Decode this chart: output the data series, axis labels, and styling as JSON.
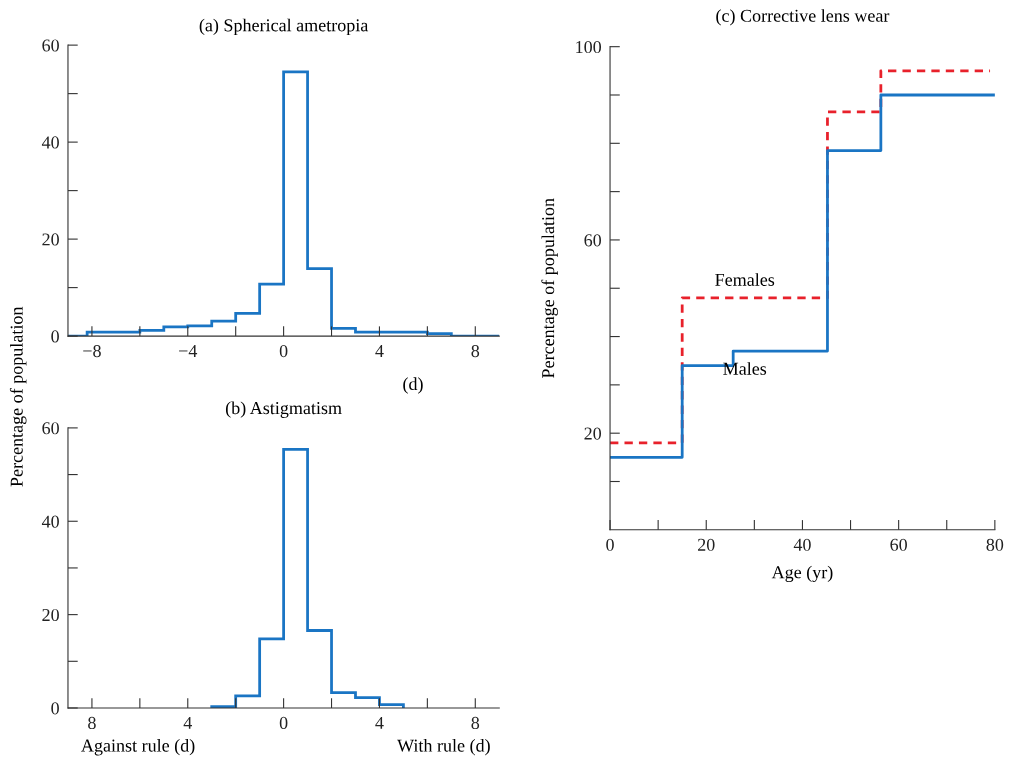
{
  "chart_data": [
    {
      "type": "histogram",
      "title": "(a) Spherical ametropia",
      "ylabel": "Percentage of population",
      "annotations": [
        "(d)"
      ],
      "bins": [
        -9,
        -8.2,
        -6,
        -5,
        -4,
        -3,
        -2,
        -1,
        0,
        1,
        2,
        3,
        6,
        7,
        9
      ],
      "values": [
        0,
        0.8,
        1.2,
        1.9,
        2.1,
        3.1,
        4.7,
        10.7,
        54.5,
        13.9,
        1.6,
        0.8,
        0.5,
        0
      ],
      "color": "#1a75c4",
      "xlim": [
        -9,
        9
      ],
      "ylim": [
        0,
        60
      ],
      "xticks": [
        {
          "value": -8,
          "label": "−8"
        },
        {
          "value": -6,
          "label": null
        },
        {
          "value": -4,
          "label": "−4"
        },
        {
          "value": -2,
          "label": null
        },
        0,
        {
          "value": 2,
          "label": null
        },
        4,
        {
          "value": 6,
          "label": null
        },
        8
      ],
      "yticks": [
        0,
        {
          "value": 10,
          "label": null
        },
        20,
        {
          "value": 30,
          "label": null
        },
        40,
        {
          "value": 50,
          "label": null
        },
        60
      ]
    },
    {
      "type": "histogram",
      "title": "(b) Astigmatism",
      "annotations": [
        "Against rule (d)",
        "With rule (d)"
      ],
      "bins": [
        -3,
        -2,
        -1,
        0,
        1,
        2,
        3,
        4,
        5
      ],
      "values": [
        0.3,
        2.6,
        14.8,
        55.4,
        16.6,
        3.3,
        2.2,
        0.7
      ],
      "color": "#1a75c4",
      "xlim": [
        -9,
        9
      ],
      "ylim": [
        0,
        60
      ],
      "xticks": [
        {
          "value": -8,
          "label": "8"
        },
        {
          "value": -6,
          "label": null
        },
        {
          "value": -4,
          "label": "4"
        },
        {
          "value": -2,
          "label": null
        },
        0,
        {
          "value": 2,
          "label": null
        },
        4,
        {
          "value": 6,
          "label": null
        },
        8
      ],
      "yticks": [
        0,
        {
          "value": 10,
          "label": null
        },
        20,
        {
          "value": 30,
          "label": null
        },
        40,
        {
          "value": 50,
          "label": null
        },
        60
      ]
    },
    {
      "type": "step",
      "title": "(c) Corrective lens wear",
      "xlabel": "Age (yr)",
      "ylabel": "Percentage of population",
      "series": [
        {
          "name": "Females",
          "color": "#e8212b",
          "line_style": "dashed",
          "x": [
            0,
            15,
            45.2,
            56.3,
            79
          ],
          "values": [
            18,
            48,
            86.5,
            95,
            95
          ]
        },
        {
          "name": "Males",
          "color": "#1a75c4",
          "line_style": "solid",
          "x": [
            0,
            15,
            25.6,
            45.2,
            56.3,
            80
          ],
          "values": [
            15,
            34,
            37,
            78.5,
            90,
            90
          ]
        }
      ],
      "xlim": [
        0,
        80
      ],
      "ylim": [
        0,
        100
      ],
      "xticks": [
        0,
        {
          "value": 10,
          "label": null
        },
        20,
        {
          "value": 30,
          "label": null
        },
        40,
        {
          "value": 50,
          "label": null
        },
        60,
        {
          "value": 70,
          "label": null
        },
        80
      ],
      "yticks": [
        {
          "value": 10,
          "label": null
        },
        20,
        {
          "value": 30,
          "label": null
        },
        {
          "value": 40,
          "label": null
        },
        {
          "value": 50,
          "label": null
        },
        60,
        {
          "value": 70,
          "label": null
        },
        {
          "value": 80,
          "label": null
        },
        {
          "value": 90,
          "label": null
        },
        100
      ]
    }
  ]
}
